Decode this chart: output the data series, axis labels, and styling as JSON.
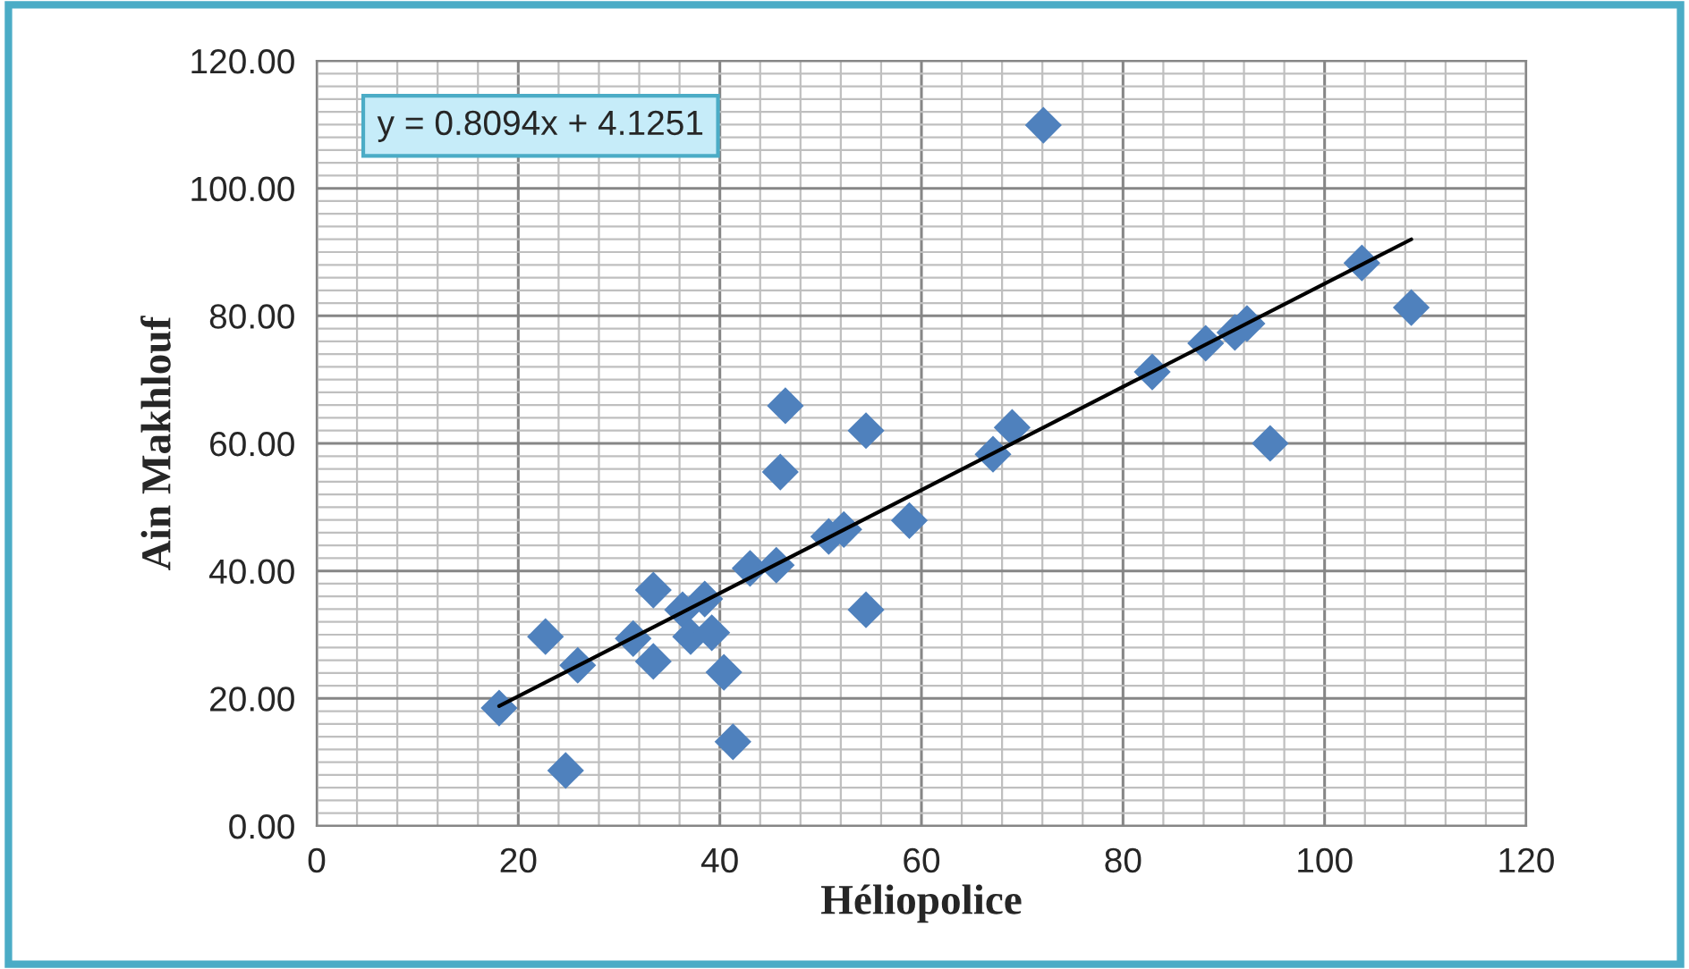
{
  "chart_data": {
    "type": "scatter",
    "xlabel": "Héliopolice",
    "ylabel": "Ain Makhlouf",
    "annotations": [
      "y = 0.8094x + 4.1251"
    ],
    "series": [
      {
        "color": "#4f81bd",
        "marker": "diamond",
        "x": [
          18.1,
          22.7,
          25.9,
          24.7,
          31.4,
          33.4,
          33.4,
          36.3,
          37.1,
          38.5,
          39.2,
          40.4,
          41.3,
          43.0,
          45.6,
          46.0,
          46.5,
          50.8,
          52.3,
          54.5,
          54.5,
          58.8,
          67.1,
          69.0,
          72.1,
          82.9,
          88.2,
          91.1,
          92.3,
          94.6,
          103.7,
          108.6
        ],
        "values": [
          18.5,
          29.7,
          25.2,
          8.7,
          29.4,
          37.0,
          25.8,
          33.9,
          29.7,
          35.6,
          30.3,
          24.1,
          13.2,
          40.4,
          40.9,
          55.5,
          65.9,
          45.4,
          46.5,
          62.0,
          33.9,
          47.9,
          58.3,
          62.5,
          109.9,
          71.2,
          75.7,
          77.4,
          78.8,
          60.0,
          88.3,
          81.3
        ]
      },
      {
        "type": "line",
        "color": "#000000",
        "marker": "none",
        "x": [
          18.1,
          108.6
        ],
        "values": [
          18.8,
          92.0
        ]
      }
    ],
    "xlim": [
      0,
      120
    ],
    "xticks": [
      0,
      20,
      40,
      60,
      80,
      100,
      120
    ],
    "ylim": [
      0,
      120
    ],
    "yticks": [
      {
        "value": 0,
        "label": "0.00"
      },
      {
        "value": 20,
        "label": "20.00"
      },
      {
        "value": 40,
        "label": "40.00"
      },
      {
        "value": 60,
        "label": "60.00"
      },
      {
        "value": 80,
        "label": "80.00"
      },
      {
        "value": 100,
        "label": "100.00"
      },
      {
        "value": 120,
        "label": "120.00"
      }
    ],
    "grid": true,
    "legend": false
  }
}
